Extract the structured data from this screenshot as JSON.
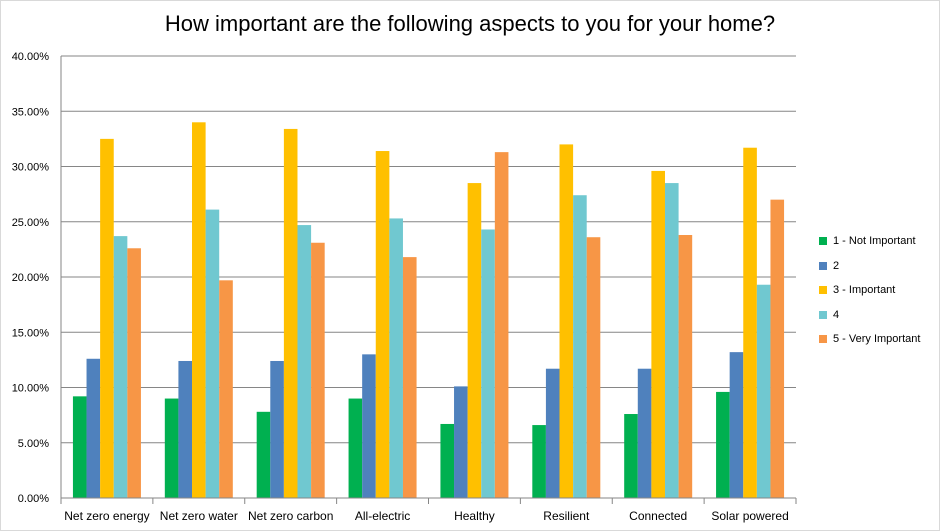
{
  "chart_data": {
    "type": "bar",
    "title": "How important are the following aspects to you for your home?",
    "xlabel": "",
    "ylabel": "",
    "ylim": [
      0,
      40
    ],
    "yticks": [
      "0.00%",
      "5.00%",
      "10.00%",
      "15.00%",
      "20.00%",
      "25.00%",
      "30.00%",
      "35.00%",
      "40.00%"
    ],
    "grid": true,
    "legend_position": "right",
    "categories": [
      "Net zero energy",
      "Net zero water",
      "Net zero carbon",
      "All-electric",
      "Healthy",
      "Resilient",
      "Connected",
      "Solar powered"
    ],
    "series": [
      {
        "name": "1 - Not Important",
        "color": "#00b050",
        "values": [
          9.2,
          9.0,
          7.8,
          9.0,
          6.7,
          6.6,
          7.6,
          9.6
        ]
      },
      {
        "name": "2",
        "color": "#4f81bd",
        "values": [
          12.6,
          12.4,
          12.4,
          13.0,
          10.1,
          11.7,
          11.7,
          13.2
        ]
      },
      {
        "name": "3 - Important",
        "color": "#ffc000",
        "values": [
          32.5,
          34.0,
          33.4,
          31.4,
          28.5,
          32.0,
          29.6,
          31.7
        ]
      },
      {
        "name": "4",
        "color": "#70c8d0",
        "values": [
          23.7,
          26.1,
          24.7,
          25.3,
          24.3,
          27.4,
          28.5,
          19.3
        ]
      },
      {
        "name": "5 - Very Important",
        "color": "#f79646",
        "values": [
          22.6,
          19.7,
          23.1,
          21.8,
          31.3,
          23.6,
          23.8,
          27.0
        ]
      }
    ]
  }
}
